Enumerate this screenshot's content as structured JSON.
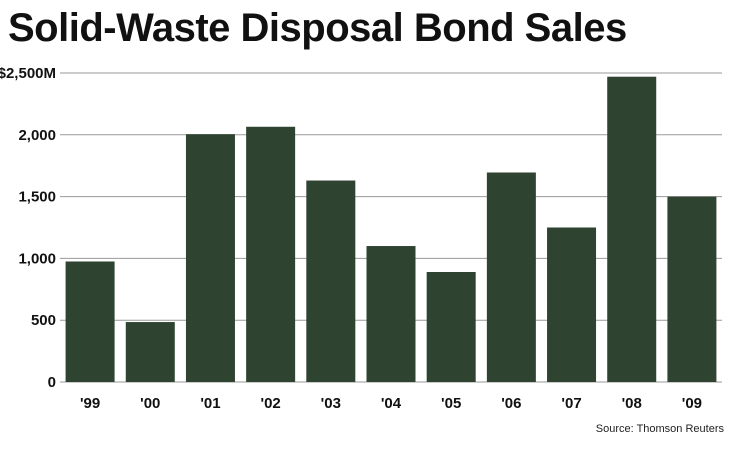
{
  "chart_data": {
    "type": "bar",
    "title": "Solid-Waste Disposal Bond Sales",
    "xlabel": "",
    "ylabel": "",
    "categories": [
      "'99",
      "'00",
      "'01",
      "'02",
      "'03",
      "'04",
      "'05",
      "'06",
      "'07",
      "'08",
      "'09"
    ],
    "values": [
      975,
      485,
      2005,
      2065,
      1630,
      1100,
      890,
      1695,
      1250,
      2470,
      1500
    ],
    "ylim": [
      0,
      2500
    ],
    "yticks": [
      0,
      500,
      1000,
      1500,
      2000,
      2500
    ],
    "ytick_labels": [
      "0",
      "500",
      "1,000",
      "1,500",
      "2,000",
      "$2,500M"
    ],
    "grid": true,
    "bar_color": "#2e4330",
    "grid_color": "#9a9a9a",
    "source": "Source: Thomson Reuters"
  }
}
